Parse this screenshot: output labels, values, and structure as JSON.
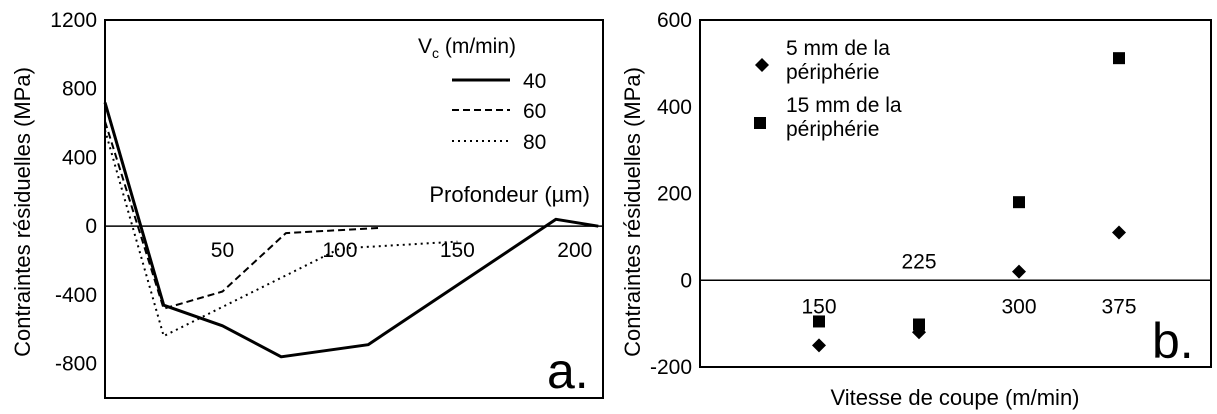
{
  "chart_data": [
    {
      "type": "line",
      "panel_label": "a.",
      "ylabel": "Contraintes résiduelles (MPa)",
      "xlabel": "Profondeur (µm)",
      "ylim": [
        -1000,
        1200
      ],
      "xlim": [
        0,
        212
      ],
      "y_ticks": [
        "1200",
        "800",
        "400",
        "0",
        "-400",
        "-800"
      ],
      "x_ticks": [
        "50",
        "100",
        "150",
        "200"
      ],
      "legend_title": "V",
      "legend_title_sub": "c",
      "legend_title_unit": " (m/min)",
      "series": [
        {
          "name": "40",
          "style": "solid",
          "color": "#000000",
          "x": [
            0,
            25,
            50,
            75,
            112,
            192,
            210
          ],
          "y": [
            720,
            -460,
            -580,
            -760,
            -690,
            40,
            0
          ]
        },
        {
          "name": "60",
          "style": "dashed",
          "color": "#000000",
          "x": [
            0,
            25,
            50,
            77,
            117
          ],
          "y": [
            610,
            -480,
            -380,
            -40,
            -10
          ]
        },
        {
          "name": "80",
          "style": "dotted",
          "color": "#000000",
          "x": [
            0,
            25,
            78,
            100,
            150
          ],
          "y": [
            560,
            -640,
            -280,
            -130,
            -90
          ]
        }
      ]
    },
    {
      "type": "scatter",
      "panel_label": "b.",
      "ylabel": "Contraintes résiduelles (MPa)",
      "xlabel": "Vitesse de coupe (m/min)",
      "ylim": [
        -200,
        600
      ],
      "y_ticks": [
        "600",
        "400",
        "200",
        "0",
        "-200"
      ],
      "categories": [
        "150",
        "225",
        "300",
        "375"
      ],
      "series": [
        {
          "name": "5 mm de la périphérie",
          "marker": "diamond",
          "color": "#000000",
          "values": [
            -150,
            -120,
            20,
            110
          ]
        },
        {
          "name": "15 mm de la périphérie",
          "marker": "square",
          "color": "#000000",
          "values": [
            -95,
            -102,
            180,
            512
          ]
        }
      ]
    }
  ]
}
